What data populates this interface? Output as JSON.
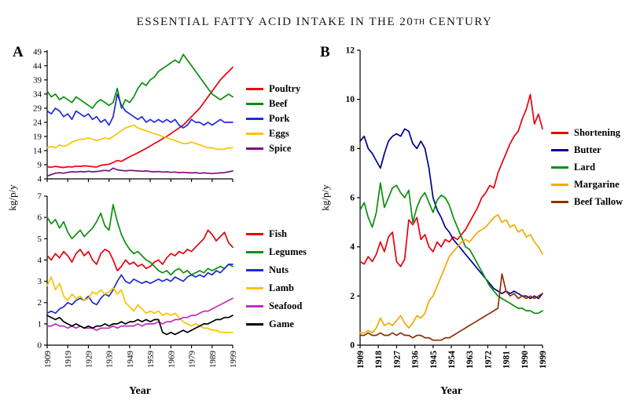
{
  "title": {
    "part1": "ESSENTIAL FATTY ACID INTAKE IN THE 20",
    "part2": "TH",
    "part3": " CENTURY"
  },
  "panels": {
    "a": {
      "label": "A"
    },
    "b": {
      "label": "B"
    }
  },
  "chart_data": [
    {
      "id": "panel-a-top",
      "type": "line",
      "panel": "A",
      "title": "",
      "xlabel": "Year",
      "ylabel": "kg/p/y",
      "grid": false,
      "legend_position": "right",
      "xlim": [
        1909,
        1999
      ],
      "ylim": [
        4,
        49.5
      ],
      "yticks": [
        4,
        9,
        14,
        19,
        24,
        29,
        34,
        39,
        44,
        49
      ],
      "xticks": [
        1909,
        1919,
        1929,
        1939,
        1949,
        1959,
        1969,
        1979,
        1989,
        1999
      ],
      "show_xtick_labels": false,
      "x": [
        1909,
        1911,
        1913,
        1915,
        1917,
        1919,
        1921,
        1923,
        1925,
        1927,
        1929,
        1931,
        1933,
        1935,
        1937,
        1939,
        1941,
        1943,
        1945,
        1947,
        1949,
        1951,
        1953,
        1955,
        1957,
        1959,
        1961,
        1963,
        1965,
        1967,
        1969,
        1971,
        1973,
        1975,
        1977,
        1979,
        1981,
        1983,
        1985,
        1987,
        1989,
        1991,
        1993,
        1995,
        1997,
        1999
      ],
      "series": [
        {
          "name": "Poultry",
          "color": "#e8000d",
          "values": [
            8.3,
            8.1,
            8.4,
            8.2,
            8.0,
            8.3,
            8.2,
            8.5,
            8.4,
            8.6,
            8.5,
            8.3,
            8.2,
            8.8,
            9.0,
            9.2,
            9.8,
            10.5,
            10.2,
            11.0,
            11.8,
            12.5,
            13.2,
            14.0,
            14.8,
            15.6,
            16.5,
            17.3,
            18.2,
            19.0,
            20.0,
            21.0,
            22.0,
            23.0,
            24.5,
            26.0,
            27.5,
            29.0,
            31.0,
            33.0,
            35.0,
            37.0,
            39.0,
            40.5,
            42.0,
            43.5
          ]
        },
        {
          "name": "Beef",
          "color": "#0a8f0a",
          "values": [
            35,
            33,
            34,
            32,
            33,
            32,
            31,
            33,
            32,
            31,
            30,
            29,
            31,
            32,
            31,
            30,
            31,
            36,
            29,
            32,
            31,
            33,
            36,
            38,
            37,
            39,
            40,
            42,
            43,
            44,
            45,
            46,
            45,
            48,
            46,
            44,
            42,
            40,
            38,
            36,
            34,
            33,
            32,
            33,
            34,
            33
          ]
        },
        {
          "name": "Pork",
          "color": "#1f2bd4",
          "values": [
            28,
            27,
            29,
            28,
            26,
            27,
            25,
            28,
            27,
            26,
            27,
            25,
            26,
            24,
            25,
            23,
            26,
            34,
            30,
            28,
            27,
            26,
            25,
            26,
            24,
            25,
            24,
            25,
            24,
            25,
            24,
            25,
            23,
            22,
            23,
            25,
            24,
            24,
            23,
            24,
            23,
            24,
            25,
            24,
            24,
            24
          ]
        },
        {
          "name": "Eggs",
          "color": "#fcc200",
          "values": [
            15,
            15.5,
            15,
            16,
            15.5,
            16,
            17,
            17.5,
            18,
            18,
            18.5,
            18,
            17.5,
            18,
            18.5,
            18,
            19,
            20,
            21,
            22,
            22.5,
            23,
            22,
            21.5,
            21,
            20.5,
            20,
            19.5,
            19,
            18.5,
            18,
            17.5,
            17,
            16.5,
            16.5,
            17,
            16.5,
            16,
            15.5,
            15,
            15,
            14.5,
            14.5,
            14.5,
            15,
            15
          ]
        },
        {
          "name": "Spice",
          "color": "#7d0f7d",
          "values": [
            5.0,
            5.5,
            6.0,
            6.2,
            6.0,
            6.3,
            6.5,
            6.4,
            6.6,
            6.5,
            6.7,
            6.5,
            6.6,
            6.8,
            7.0,
            6.8,
            7.8,
            7.2,
            7.0,
            6.8,
            7.0,
            6.9,
            6.8,
            6.7,
            6.8,
            6.6,
            6.5,
            6.6,
            6.4,
            6.5,
            6.3,
            6.4,
            6.2,
            6.3,
            6.2,
            6.1,
            6.2,
            6.0,
            6.1,
            6.0,
            5.9,
            6.0,
            6.1,
            6.2,
            6.5,
            6.8
          ]
        }
      ]
    },
    {
      "id": "panel-a-bottom",
      "type": "line",
      "panel": "A",
      "title": "",
      "xlabel": "Year",
      "ylabel": "kg/p/y",
      "grid": false,
      "legend_position": "right",
      "xlim": [
        1909,
        1999
      ],
      "ylim": [
        0,
        7
      ],
      "yticks": [
        0,
        1,
        2,
        3,
        4,
        5,
        6,
        7
      ],
      "xticks": [
        1909,
        1919,
        1929,
        1939,
        1949,
        1959,
        1969,
        1979,
        1989,
        1999
      ],
      "show_xtick_labels": true,
      "x": [
        1909,
        1911,
        1913,
        1915,
        1917,
        1919,
        1921,
        1923,
        1925,
        1927,
        1929,
        1931,
        1933,
        1935,
        1937,
        1939,
        1941,
        1943,
        1945,
        1947,
        1949,
        1951,
        1953,
        1955,
        1957,
        1959,
        1961,
        1963,
        1965,
        1967,
        1969,
        1971,
        1973,
        1975,
        1977,
        1979,
        1981,
        1983,
        1985,
        1987,
        1989,
        1991,
        1993,
        1995,
        1997,
        1999
      ],
      "series": [
        {
          "name": "Fish",
          "color": "#e8000d",
          "values": [
            4.2,
            4.0,
            4.3,
            4.1,
            4.4,
            4.2,
            3.9,
            4.3,
            4.5,
            4.2,
            4.4,
            4.0,
            3.8,
            4.3,
            4.5,
            4.4,
            4.0,
            3.5,
            3.7,
            4.0,
            3.8,
            3.9,
            3.7,
            3.8,
            3.6,
            3.7,
            3.9,
            4.0,
            3.8,
            4.1,
            4.3,
            4.2,
            4.4,
            4.3,
            4.5,
            4.4,
            4.6,
            4.8,
            5.0,
            5.4,
            5.2,
            4.9,
            5.1,
            5.3,
            4.8,
            4.6
          ]
        },
        {
          "name": "Legumes",
          "color": "#0a8f0a",
          "values": [
            6.0,
            5.7,
            5.9,
            5.5,
            5.8,
            5.3,
            5.0,
            5.2,
            5.4,
            5.1,
            5.3,
            5.5,
            5.8,
            6.2,
            5.6,
            5.4,
            6.6,
            5.8,
            5.2,
            4.8,
            4.5,
            4.3,
            4.4,
            4.2,
            4.0,
            3.9,
            3.7,
            3.5,
            3.4,
            3.5,
            3.3,
            3.5,
            3.6,
            3.4,
            3.5,
            3.3,
            3.4,
            3.5,
            3.4,
            3.6,
            3.5,
            3.6,
            3.7,
            3.6,
            3.8,
            3.7
          ]
        },
        {
          "name": "Nuts",
          "color": "#1f2bd4",
          "values": [
            1.5,
            1.6,
            1.5,
            1.7,
            1.8,
            2.0,
            1.9,
            2.1,
            2.2,
            2.1,
            2.3,
            2.0,
            1.9,
            2.2,
            2.4,
            2.3,
            2.6,
            3.0,
            3.3,
            3.0,
            2.9,
            3.1,
            3.0,
            2.9,
            3.0,
            2.9,
            3.0,
            3.1,
            3.0,
            3.1,
            3.0,
            3.2,
            3.1,
            3.0,
            3.2,
            3.3,
            3.2,
            3.3,
            3.2,
            3.4,
            3.3,
            3.5,
            3.4,
            3.6,
            3.8,
            3.8
          ]
        },
        {
          "name": "Lamb",
          "color": "#fcc200",
          "values": [
            2.8,
            3.2,
            2.6,
            2.9,
            2.3,
            2.1,
            2.4,
            2.2,
            2.3,
            2.1,
            2.2,
            2.5,
            2.4,
            2.6,
            2.4,
            2.5,
            2.7,
            2.4,
            2.6,
            2.0,
            1.8,
            1.6,
            1.9,
            1.7,
            1.5,
            1.6,
            1.5,
            1.6,
            1.4,
            1.5,
            1.4,
            1.5,
            1.3,
            1.1,
            1.0,
            0.9,
            1.0,
            0.9,
            0.8,
            0.8,
            0.7,
            0.7,
            0.6,
            0.6,
            0.6,
            0.6
          ]
        },
        {
          "name": "Seafood",
          "color": "#c02ec0",
          "values": [
            0.9,
            0.9,
            1.0,
            0.9,
            0.9,
            0.8,
            0.9,
            0.8,
            0.9,
            0.8,
            0.8,
            0.8,
            0.7,
            0.8,
            0.8,
            0.8,
            0.9,
            0.8,
            0.9,
            0.9,
            0.9,
            0.9,
            1.0,
            0.9,
            1.0,
            1.0,
            1.0,
            1.1,
            1.0,
            1.1,
            1.1,
            1.2,
            1.2,
            1.3,
            1.3,
            1.4,
            1.4,
            1.5,
            1.6,
            1.6,
            1.7,
            1.8,
            1.9,
            2.0,
            2.1,
            2.2
          ]
        },
        {
          "name": "Game",
          "color": "#000000",
          "values": [
            1.4,
            1.3,
            1.2,
            1.3,
            1.1,
            1.0,
            0.9,
            1.0,
            0.9,
            0.8,
            0.9,
            0.8,
            0.9,
            0.9,
            1.0,
            0.9,
            1.0,
            1.0,
            1.1,
            1.0,
            1.1,
            1.1,
            1.2,
            1.1,
            1.2,
            1.1,
            1.2,
            1.2,
            0.6,
            0.5,
            0.6,
            0.5,
            0.6,
            0.7,
            0.6,
            0.7,
            0.8,
            0.9,
            1.0,
            1.0,
            1.1,
            1.2,
            1.2,
            1.3,
            1.3,
            1.4
          ]
        }
      ]
    },
    {
      "id": "panel-b",
      "type": "line",
      "panel": "B",
      "title": "",
      "xlabel": "Year",
      "ylabel": "kg/p/y",
      "grid": false,
      "legend_position": "right",
      "xlim": [
        1909,
        1999
      ],
      "ylim": [
        0,
        12
      ],
      "yticks": [
        0,
        2,
        4,
        6,
        8,
        10,
        12
      ],
      "xticks": [
        1909,
        1918,
        1927,
        1936,
        1945,
        1954,
        1963,
        1972,
        1981,
        1990,
        1999
      ],
      "show_xtick_labels": true,
      "x": [
        1909,
        1911,
        1913,
        1915,
        1917,
        1919,
        1921,
        1923,
        1925,
        1927,
        1929,
        1931,
        1933,
        1935,
        1937,
        1939,
        1941,
        1943,
        1945,
        1947,
        1949,
        1951,
        1953,
        1955,
        1957,
        1959,
        1961,
        1963,
        1965,
        1967,
        1969,
        1971,
        1973,
        1975,
        1977,
        1979,
        1981,
        1983,
        1985,
        1987,
        1989,
        1991,
        1993,
        1995,
        1997,
        1999
      ],
      "series": [
        {
          "name": "Shortening",
          "color": "#e8000d",
          "values": [
            3.4,
            3.3,
            3.6,
            3.4,
            3.7,
            4.2,
            3.8,
            4.4,
            4.6,
            3.4,
            3.2,
            3.5,
            5.1,
            4.9,
            5.2,
            4.3,
            4.5,
            4.0,
            3.8,
            4.2,
            4.0,
            4.3,
            4.2,
            4.4,
            4.3,
            4.5,
            4.7,
            5.0,
            5.3,
            5.6,
            6.0,
            6.2,
            6.5,
            6.4,
            7.0,
            7.4,
            7.8,
            8.2,
            8.5,
            8.7,
            9.2,
            9.6,
            10.2,
            9.0,
            9.4,
            8.8
          ]
        },
        {
          "name": "Butter",
          "color": "#00008b",
          "values": [
            8.3,
            8.5,
            8.0,
            7.8,
            7.5,
            7.2,
            7.8,
            8.3,
            8.5,
            8.6,
            8.5,
            8.8,
            8.7,
            8.2,
            8.0,
            8.3,
            8.0,
            7.2,
            6.0,
            5.5,
            5.2,
            4.8,
            4.6,
            4.3,
            4.1,
            3.9,
            3.7,
            3.5,
            3.3,
            3.1,
            2.9,
            2.7,
            2.5,
            2.3,
            2.2,
            2.1,
            2.2,
            2.1,
            2.2,
            2.1,
            2.0,
            2.0,
            1.9,
            2.0,
            1.9,
            2.1
          ]
        },
        {
          "name": "Lard",
          "color": "#0a8f0a",
          "values": [
            5.5,
            5.8,
            5.2,
            4.8,
            5.4,
            6.6,
            5.6,
            6.0,
            6.4,
            6.5,
            6.2,
            6.0,
            6.3,
            5.0,
            5.6,
            6.0,
            6.2,
            5.8,
            5.4,
            5.9,
            6.1,
            6.0,
            5.7,
            5.2,
            4.8,
            4.4,
            4.0,
            3.9,
            3.6,
            3.3,
            3.0,
            2.7,
            2.4,
            2.2,
            2.0,
            1.9,
            1.8,
            1.7,
            1.6,
            1.5,
            1.5,
            1.4,
            1.4,
            1.3,
            1.3,
            1.4
          ]
        },
        {
          "name": "Margarine",
          "color": "#f2a900",
          "values": [
            0.5,
            0.5,
            0.6,
            0.5,
            0.7,
            1.1,
            0.8,
            0.9,
            0.8,
            1.0,
            1.2,
            0.9,
            0.7,
            0.9,
            1.2,
            1.1,
            1.3,
            1.8,
            2.0,
            2.4,
            2.8,
            3.2,
            3.6,
            3.8,
            4.0,
            4.2,
            4.3,
            4.2,
            4.4,
            4.6,
            4.7,
            4.8,
            5.0,
            5.2,
            5.3,
            5.0,
            5.1,
            4.8,
            4.9,
            4.6,
            4.7,
            4.4,
            4.5,
            4.2,
            4.0,
            3.7
          ]
        },
        {
          "name": "Beef Tallow",
          "color": "#8b3103",
          "values": [
            0.4,
            0.4,
            0.5,
            0.4,
            0.4,
            0.5,
            0.4,
            0.4,
            0.5,
            0.4,
            0.5,
            0.4,
            0.4,
            0.3,
            0.4,
            0.4,
            0.3,
            0.3,
            0.2,
            0.2,
            0.2,
            0.3,
            0.3,
            0.4,
            0.5,
            0.6,
            0.7,
            0.8,
            0.9,
            1.0,
            1.1,
            1.2,
            1.3,
            1.4,
            1.5,
            2.9,
            2.2,
            2.0,
            2.1,
            1.9,
            2.0,
            1.9,
            2.0,
            1.9,
            2.0,
            2.1
          ]
        }
      ]
    }
  ]
}
